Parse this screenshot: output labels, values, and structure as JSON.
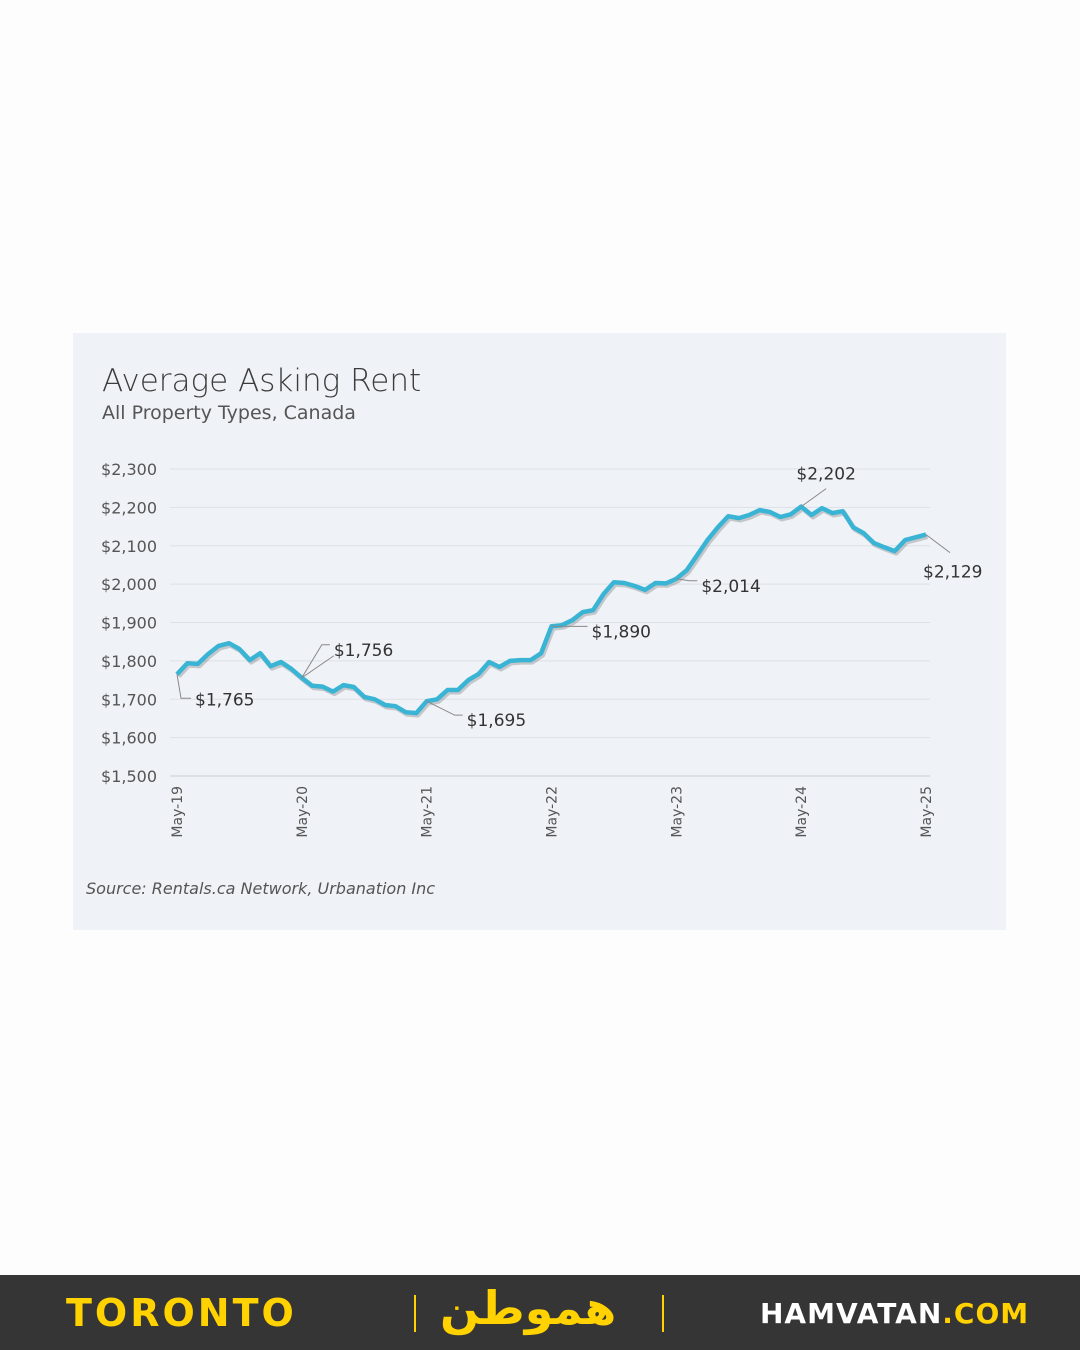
{
  "chart_data": {
    "type": "line",
    "title": "Average Asking Rent",
    "subtitle": "All Property Types, Canada",
    "source": "Source: Rentals.ca Network, Urbanation Inc",
    "ylim": [
      1500,
      2300
    ],
    "yticks": [
      "$1,500",
      "$1,600",
      "$1,700",
      "$1,800",
      "$1,900",
      "$2,000",
      "$2,100",
      "$2,200",
      "$2,300"
    ],
    "ytick_values": [
      1500,
      1600,
      1700,
      1800,
      1900,
      2000,
      2100,
      2200,
      2300
    ],
    "xticks": [
      "May-19",
      "May-20",
      "May-21",
      "May-22",
      "May-23",
      "May-24",
      "May-25"
    ],
    "grid": true,
    "line_color": "#3ab4d4",
    "x_start": "May-19",
    "x_step": "month",
    "values": [
      1765,
      1794,
      1792,
      1818,
      1839,
      1846,
      1831,
      1802,
      1820,
      1786,
      1797,
      1779,
      1756,
      1735,
      1733,
      1720,
      1737,
      1732,
      1706,
      1700,
      1685,
      1682,
      1666,
      1664,
      1695,
      1700,
      1724,
      1724,
      1750,
      1766,
      1797,
      1784,
      1800,
      1802,
      1802,
      1820,
      1890,
      1893,
      1906,
      1927,
      1932,
      1974,
      2005,
      2003,
      1995,
      1985,
      2003,
      2002,
      2014,
      2036,
      2075,
      2115,
      2148,
      2177,
      2172,
      2180,
      2193,
      2188,
      2175,
      2182,
      2202,
      2180,
      2198,
      2185,
      2190,
      2148,
      2133,
      2107,
      2096,
      2086,
      2115,
      2122,
      2129
    ],
    "annotations": [
      {
        "index": 0,
        "label": "$1,765"
      },
      {
        "index": 12,
        "label": "$1,756"
      },
      {
        "index": 24,
        "label": "$1,695"
      },
      {
        "index": 36,
        "label": "$1,890"
      },
      {
        "index": 48,
        "label": "$2,014"
      },
      {
        "index": 60,
        "label": "$2,202"
      },
      {
        "index": 72,
        "label": "$2,129"
      }
    ]
  },
  "footer": {
    "city": "TORONTO",
    "logo": "هموطن",
    "site_name": "HAMVATAN",
    "site_domain": ".COM",
    "accent": "#ffd200",
    "background": "#353535"
  }
}
